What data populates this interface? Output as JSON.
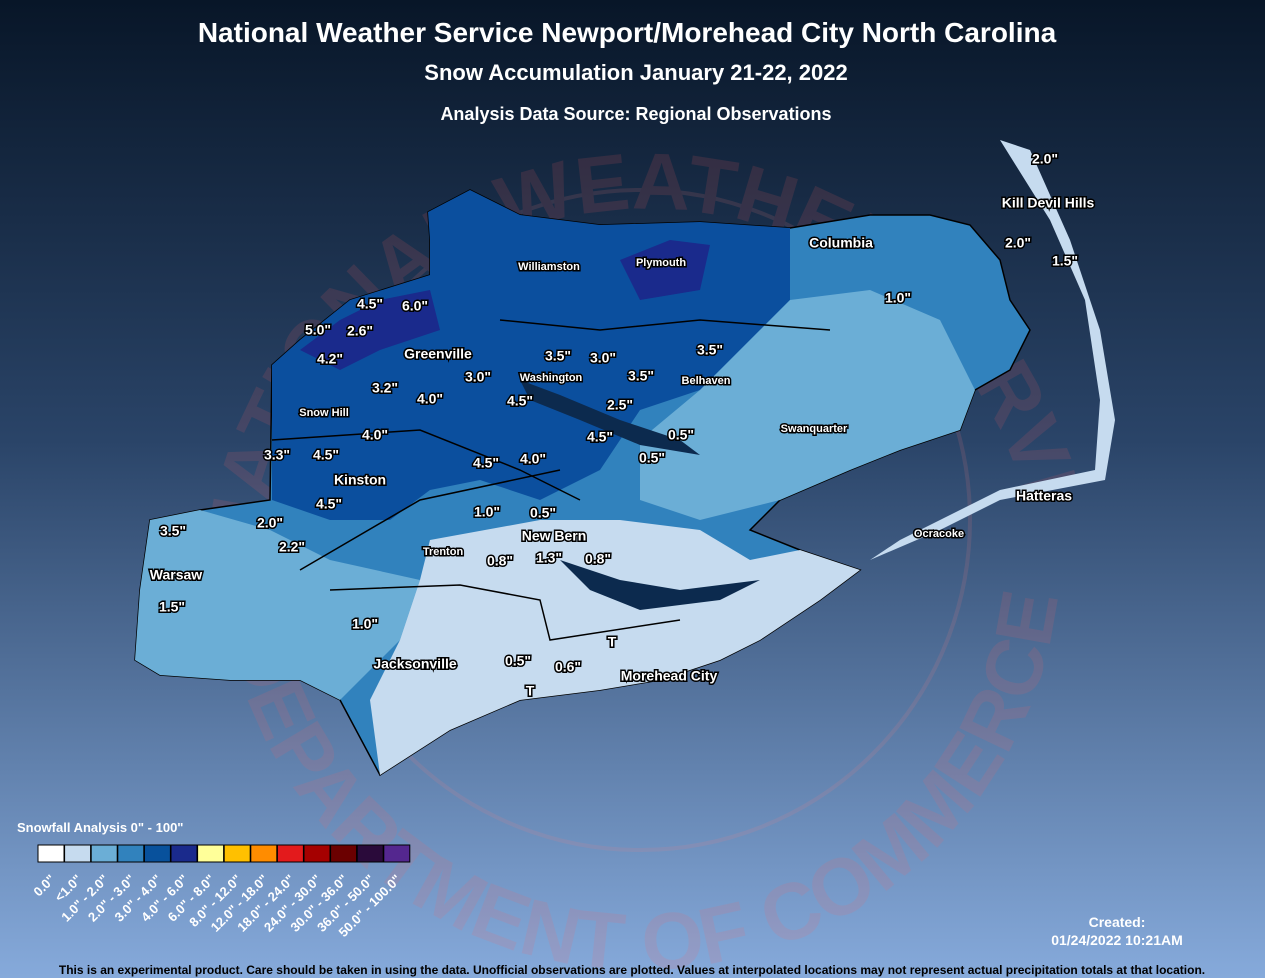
{
  "header": {
    "title": "National Weather Service Newport/Morehead City North Carolina",
    "subtitle": "Snow Accumulation January 21-22, 2022",
    "source": "Analysis Data Source: Regional Observations"
  },
  "watermark": [
    "NATIONAL WEATHER SERVICE",
    "DEPARTMENT OF COMMERCE"
  ],
  "cities": [
    {
      "name": "Kill Devil Hills",
      "size": "large"
    },
    {
      "name": "Columbia",
      "size": "large"
    },
    {
      "name": "Williamston",
      "size": "small"
    },
    {
      "name": "Plymouth",
      "size": "small"
    },
    {
      "name": "Greenville",
      "size": "large"
    },
    {
      "name": "Washington",
      "size": "small"
    },
    {
      "name": "Belhaven",
      "size": "small"
    },
    {
      "name": "Swanquarter",
      "size": "small"
    },
    {
      "name": "Snow Hill",
      "size": "small"
    },
    {
      "name": "Kinston",
      "size": "large"
    },
    {
      "name": "Trenton",
      "size": "small"
    },
    {
      "name": "New Bern",
      "size": "large"
    },
    {
      "name": "Hatteras",
      "size": "large"
    },
    {
      "name": "Ocracoke",
      "size": "small"
    },
    {
      "name": "Warsaw",
      "size": "large"
    },
    {
      "name": "Jacksonville",
      "size": "large"
    },
    {
      "name": "Morehead City",
      "size": "large"
    }
  ],
  "snow_labels": [
    "2.0\"",
    "2.0\"",
    "1.5\"",
    "1.0\"",
    "4.5\"",
    "6.0\"",
    "5.0\"",
    "2.6\"",
    "4.2\"",
    "3.5\"",
    "3.0\"",
    "3.5\"",
    "3.0\"",
    "3.5\"",
    "3.2\"",
    "4.0\"",
    "4.5\"",
    "2.5\"",
    "4.0\"",
    "0.5\"",
    "4.5\"",
    "3.3\"",
    "4.5\"",
    "4.5\"",
    "4.0\"",
    "0.5\"",
    "4.5\"",
    "1.0\"",
    "0.5\"",
    "3.5\"",
    "2.0\"",
    "2.2\"",
    "0.8\"",
    "1.3\"",
    "0.8\"",
    "1.5\"",
    "1.0\"",
    "0.5\"",
    "0.6\"",
    "T",
    "T"
  ],
  "legend": {
    "title": "Snowfall Analysis 0\" - 100\"",
    "items": [
      {
        "label": "0.0\"",
        "color": "#ffffff"
      },
      {
        "label": "<1.0\"",
        "color": "#c6dbef"
      },
      {
        "label": "1.0\" - 2.0\"",
        "color": "#6baed6"
      },
      {
        "label": "2.0\" - 3.0\"",
        "color": "#3182bd"
      },
      {
        "label": "3.0\" - 4.0\"",
        "color": "#08519c"
      },
      {
        "label": "4.0\" - 6.0\"",
        "color": "#1a2a8c"
      },
      {
        "label": "6.0\" - 8.0\"",
        "color": "#ffff99"
      },
      {
        "label": "8.0\" - 12.0\"",
        "color": "#ffc000"
      },
      {
        "label": "12.0\" - 18.0\"",
        "color": "#ff8c00"
      },
      {
        "label": "18.0\" - 24.0\"",
        "color": "#e31a1c"
      },
      {
        "label": "24.0\" - 30.0\"",
        "color": "#a50000"
      },
      {
        "label": "30.0\" - 36.0\"",
        "color": "#6b0000"
      },
      {
        "label": "36.0\" - 50.0\"",
        "color": "#2a0a3a"
      },
      {
        "label": "50.0\" - 100.0\"",
        "color": "#54278f"
      }
    ]
  },
  "created": {
    "label": "Created:",
    "timestamp": "01/24/2022 10:21AM"
  },
  "disclaimer": "This is an experimental product. Care should be taken in using the data. Unofficial observations are plotted. Values at interpolated locations may not represent actual precipitation totals at that location."
}
